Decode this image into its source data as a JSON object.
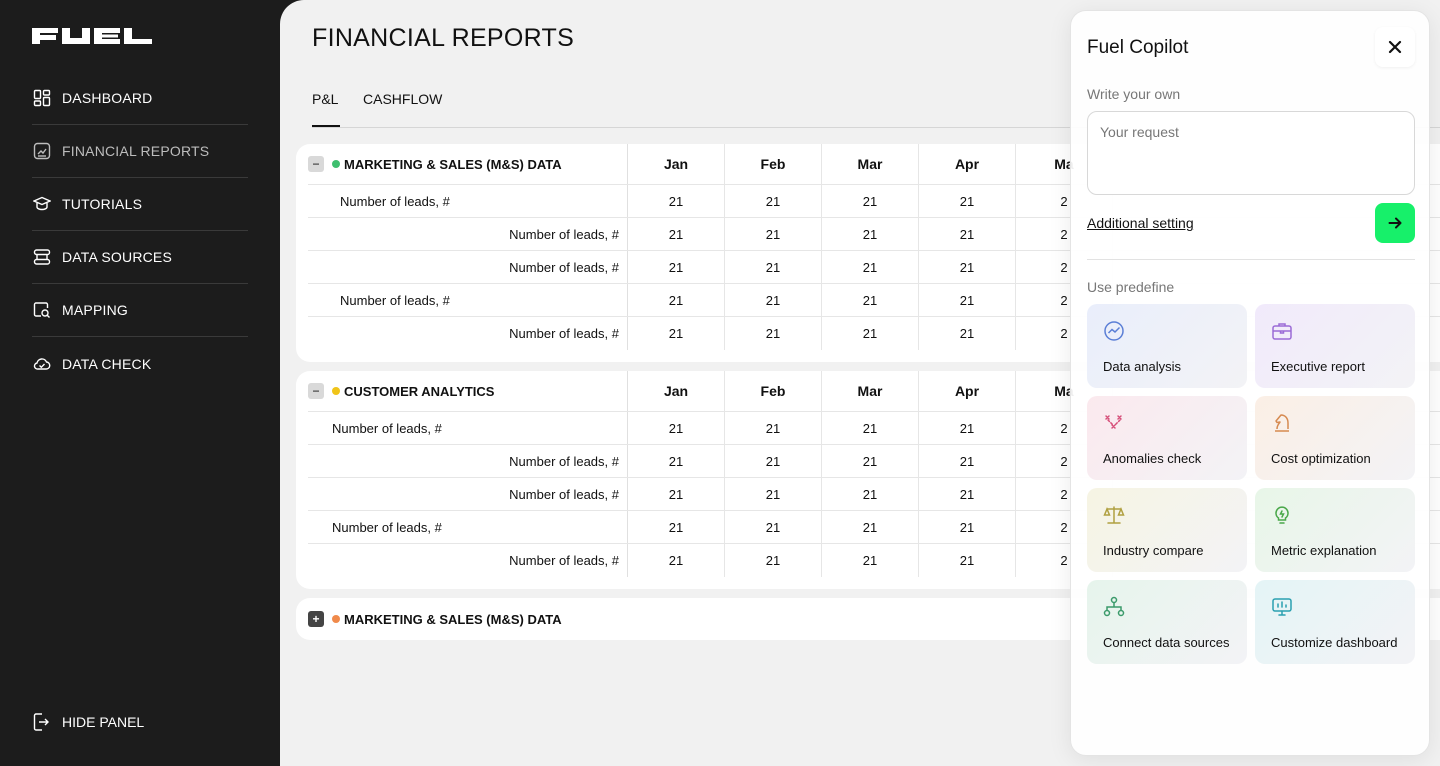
{
  "sidebar": {
    "brand": "FUEL",
    "items": [
      {
        "label": "DASHBOARD",
        "icon": "dashboard-icon"
      },
      {
        "label": "FINANCIAL REPORTS",
        "icon": "reports-icon"
      },
      {
        "label": "TUTORIALS",
        "icon": "graduation-cap-icon"
      },
      {
        "label": "DATA SOURCES",
        "icon": "data-sources-icon"
      },
      {
        "label": "MAPPING",
        "icon": "mapping-icon"
      },
      {
        "label": "DATA CHECK",
        "icon": "cloud-check-icon"
      }
    ],
    "hide_panel": "HIDE PANEL"
  },
  "page": {
    "title": "FINANCIAL REPORTS",
    "tabs": [
      "P&L",
      "CASHFLOW"
    ]
  },
  "months": [
    "Jan",
    "Feb",
    "Mar",
    "Apr",
    "Ma"
  ],
  "sections": [
    {
      "title": "MARKETING & SALES (M&S) DATA",
      "dot_color": "#3fbf6f",
      "rows": [
        {
          "label": "Number of leads, #",
          "values": [
            "21",
            "21",
            "21",
            "21",
            "2"
          ]
        },
        {
          "label": "Number of leads, #",
          "values": [
            "21",
            "21",
            "21",
            "21",
            "2"
          ]
        },
        {
          "label": "Number of leads, #",
          "values": [
            "21",
            "21",
            "21",
            "21",
            "2"
          ]
        },
        {
          "label": "Number of leads, #",
          "values": [
            "21",
            "21",
            "21",
            "21",
            "2"
          ]
        },
        {
          "label": "Number of leads, #",
          "values": [
            "21",
            "21",
            "21",
            "21",
            "2"
          ]
        }
      ]
    },
    {
      "title": "CUSTOMER ANALYTICS",
      "dot_color": "#f0c419",
      "rows": [
        {
          "label": "Number of leads, #",
          "values": [
            "21",
            "21",
            "21",
            "21",
            "2"
          ]
        },
        {
          "label": "Number of leads, #",
          "values": [
            "21",
            "21",
            "21",
            "21",
            "2"
          ]
        },
        {
          "label": "Number of leads, #",
          "values": [
            "21",
            "21",
            "21",
            "21",
            "2"
          ]
        },
        {
          "label": "Number of leads, #",
          "values": [
            "21",
            "21",
            "21",
            "21",
            "2"
          ]
        },
        {
          "label": "Number of leads, #",
          "values": [
            "21",
            "21",
            "21",
            "21",
            "2"
          ]
        }
      ]
    },
    {
      "title": "MARKETING & SALES (M&S) DATA",
      "dot_color": "#f08a4b"
    }
  ],
  "copilot": {
    "title": "Fuel Copilot",
    "write_own": "Write your own",
    "placeholder": "Your request",
    "additional": "Additional setting",
    "use_predefine": "Use predefine",
    "tiles": [
      {
        "label": "Data analysis",
        "icon": "chart-analysis-icon",
        "color": "#5b7fd6"
      },
      {
        "label": "Executive report",
        "icon": "briefcase-icon",
        "color": "#9b6bd6"
      },
      {
        "label": "Anomalies check",
        "icon": "anomalies-icon",
        "color": "#d6507a"
      },
      {
        "label": "Cost optimization",
        "icon": "chess-knight-icon",
        "color": "#d68a50"
      },
      {
        "label": "Industry compare",
        "icon": "scales-icon",
        "color": "#b0a040"
      },
      {
        "label": "Metric explanation",
        "icon": "lightbulb-icon",
        "color": "#4aa84a"
      },
      {
        "label": "Connect data sources",
        "icon": "hierarchy-icon",
        "color": "#3a9a6a"
      },
      {
        "label": "Customize dashboard",
        "icon": "presentation-icon",
        "color": "#2aa0b0"
      }
    ],
    "send_color": "#17f06a"
  }
}
